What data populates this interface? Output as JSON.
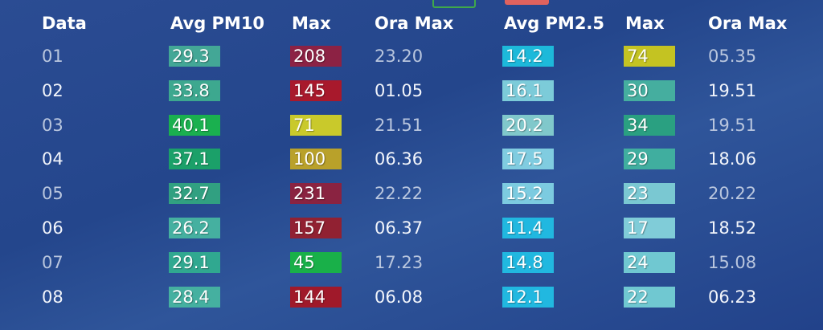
{
  "table": {
    "header": [
      "Data",
      "Avg PM10",
      "Max",
      "Ora Max",
      "Avg PM2.5",
      "Max",
      "Ora Max"
    ],
    "rows": [
      [
        "01",
        "29.3",
        "208",
        "23.20",
        "14.2",
        "74",
        "05.35"
      ],
      [
        "02",
        "33.8",
        "145",
        "01.05",
        "16.1",
        "30",
        "19.51"
      ],
      [
        "03",
        "40.1",
        "71",
        "21.51",
        "20.2",
        "34",
        "19.51"
      ],
      [
        "04",
        "37.1",
        "100",
        "06.36",
        "17.5",
        "29",
        "18.06"
      ],
      [
        "05",
        "32.7",
        "231",
        "22.22",
        "15.2",
        "23",
        "20.22"
      ],
      [
        "06",
        "26.2",
        "157",
        "06.37",
        "11.4",
        "17",
        "18.52"
      ],
      [
        "07",
        "29.1",
        "45",
        "17.23",
        "14.8",
        "24",
        "15.08"
      ],
      [
        "08",
        "28.4",
        "144",
        "06.08",
        "12.1",
        "22",
        "06.23"
      ]
    ],
    "badge_colors": [
      [
        "#43a796",
        "#8c2244",
        "#1db9da",
        "#c4c322"
      ],
      [
        "#3da88f",
        "#a8192c",
        "#7ccbd9",
        "#45ae9f"
      ],
      [
        "#1ab04f",
        "#c9c92b",
        "#80c8cb",
        "#2aa081"
      ],
      [
        "#1ba069",
        "#b9a12a",
        "#80cce0",
        "#40ae9f"
      ],
      [
        "#31a081",
        "#8a2341",
        "#7ccbe0",
        "#7ac8d2"
      ],
      [
        "#45b0a0",
        "#912132",
        "#21b8e0",
        "#80ccd8"
      ],
      [
        "#30a890",
        "#19b049",
        "#21b8e0",
        "#70c8d1"
      ],
      [
        "#45b0a0",
        "#a0192a",
        "#21b8e0",
        "#70c8d1"
      ]
    ]
  }
}
